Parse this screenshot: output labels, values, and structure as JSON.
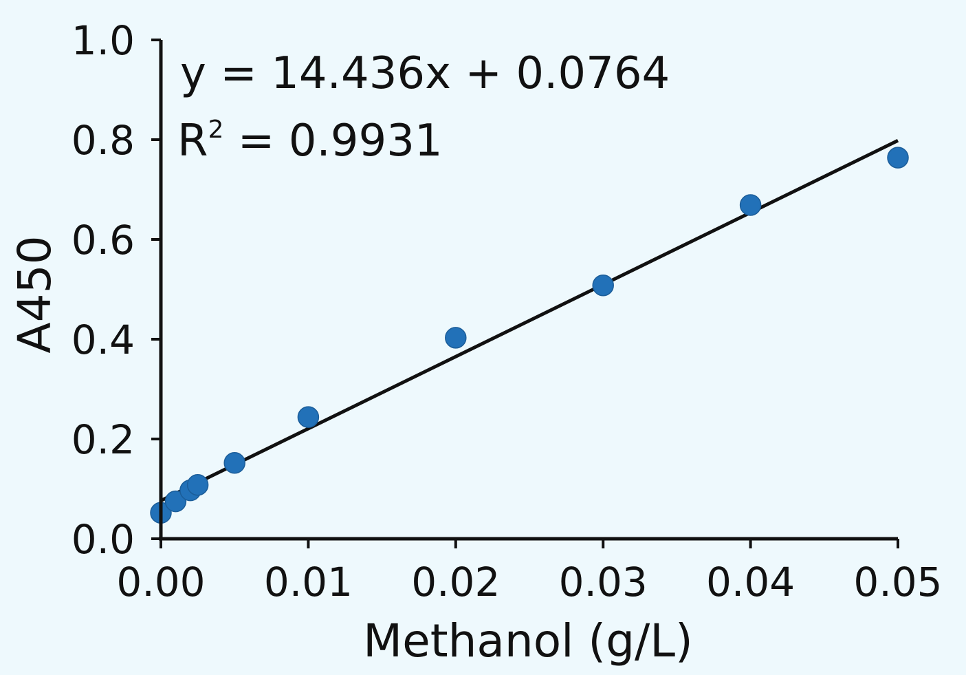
{
  "chart_data": {
    "type": "scatter",
    "xlabel": "Methanol (g/L)",
    "ylabel": "A450",
    "xlim": [
      0,
      0.05
    ],
    "ylim": [
      0,
      1.0
    ],
    "x_ticks": [
      "0.00",
      "0.01",
      "0.02",
      "0.03",
      "0.04",
      "0.05"
    ],
    "y_ticks": [
      "0.0",
      "0.2",
      "0.4",
      "0.6",
      "0.8",
      "1.0"
    ],
    "grid": false,
    "series": [
      {
        "points": [
          {
            "x": 0.0,
            "y": 0.052
          },
          {
            "x": 0.001,
            "y": 0.075
          },
          {
            "x": 0.002,
            "y": 0.097
          },
          {
            "x": 0.0025,
            "y": 0.108
          },
          {
            "x": 0.005,
            "y": 0.152
          },
          {
            "x": 0.01,
            "y": 0.244
          },
          {
            "x": 0.02,
            "y": 0.403
          },
          {
            "x": 0.03,
            "y": 0.508
          },
          {
            "x": 0.04,
            "y": 0.669
          },
          {
            "x": 0.05,
            "y": 0.764
          }
        ],
        "color": "#2271b8"
      }
    ],
    "fit": {
      "slope": 14.436,
      "intercept": 0.0764,
      "color": "#111111"
    },
    "annotations": {
      "equation": "y = 14.436x + 0.0764",
      "r_squared_prefix": "R",
      "r_squared_sup": "2",
      "r_squared_value": " = 0.9931"
    }
  }
}
